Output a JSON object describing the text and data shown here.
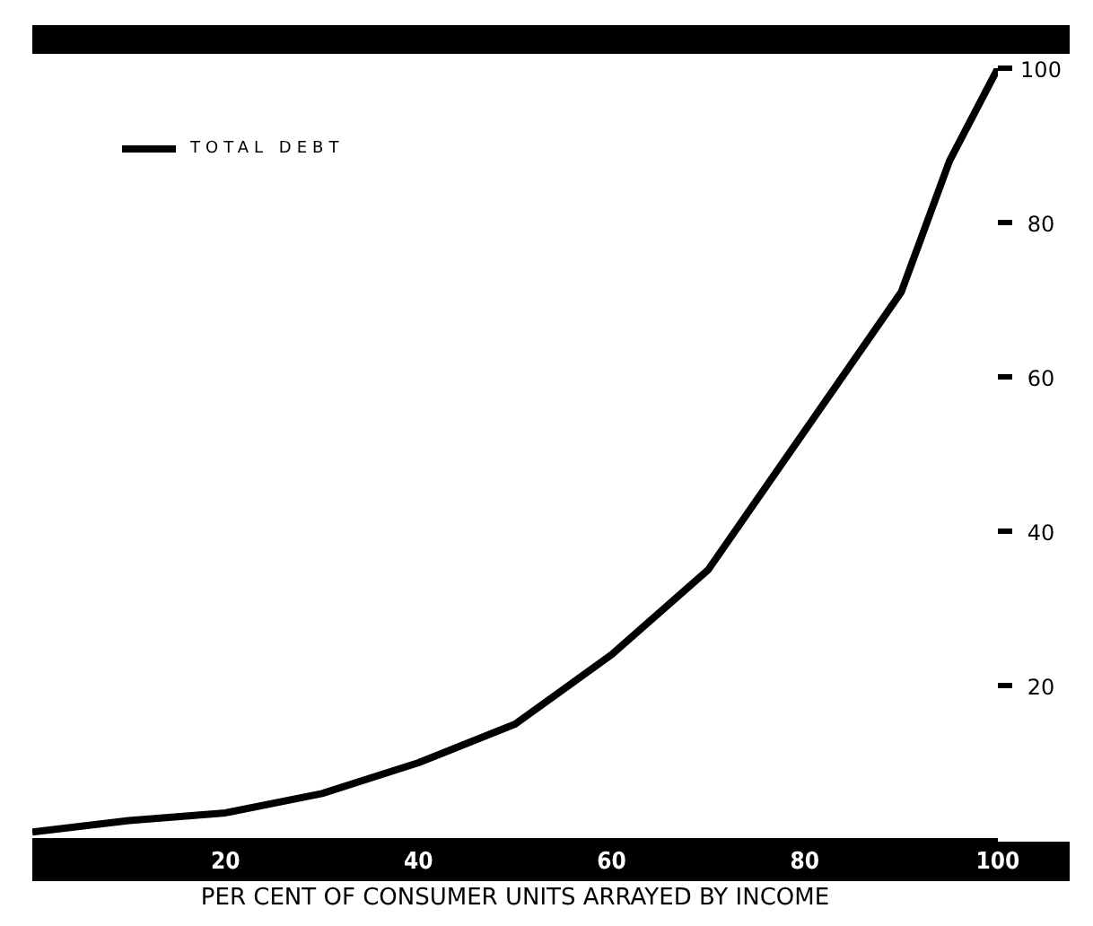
{
  "chart_data": {
    "type": "line",
    "xlabel": "PER CENT OF CONSUMER UNITS ARRAYED BY INCOME",
    "x": [
      0,
      10,
      20,
      30,
      40,
      50,
      60,
      70,
      80,
      90,
      95,
      100
    ],
    "series": [
      {
        "name": "TOTAL DEBT",
        "color": "#000000",
        "values": [
          1,
          2.5,
          3.5,
          6,
          10,
          15,
          24,
          35,
          53,
          71,
          88,
          100
        ]
      }
    ],
    "xlim": [
      0,
      100
    ],
    "xticks": [
      20,
      40,
      60,
      80,
      100
    ],
    "ylim": [
      0,
      100
    ],
    "yticks": [
      20,
      40,
      60,
      80,
      100
    ],
    "grid": false,
    "legend": "top left",
    "marker": "none",
    "line_style": "solid"
  }
}
